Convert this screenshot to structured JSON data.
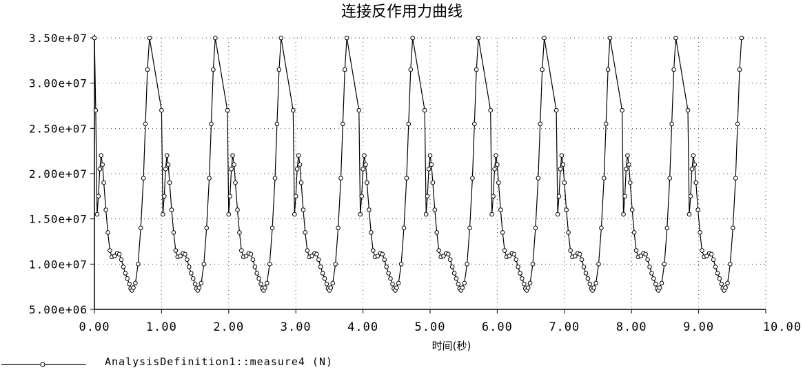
{
  "chart_data": {
    "type": "line",
    "title": "连接反作用力曲线",
    "xlabel": "时间(秒)",
    "ylabel": "",
    "xlim": [
      0,
      10
    ],
    "ylim": [
      5000000,
      35000000
    ],
    "x_tick_labels": [
      "0.00",
      "1.00",
      "2.00",
      "3.00",
      "4.00",
      "5.00",
      "6.00",
      "7.00",
      "8.00",
      "9.00",
      "10.00"
    ],
    "y_tick_labels": [
      "5.00e+06",
      "1.00e+07",
      "1.50e+07",
      "2.00e+07",
      "2.50e+07",
      "3.00e+07",
      "3.50e+07"
    ],
    "grid": true,
    "legend": "bottom-left",
    "series": [
      {
        "name": "AnalysisDefinition1::measure4 (N)",
        "color": "#000000",
        "marker": "circle",
        "period": 0.98,
        "cycles": 10,
        "cycle_shape": [
          [
            0.0,
            35000000
          ],
          [
            0.02,
            27000000
          ],
          [
            0.04,
            15500000
          ],
          [
            0.06,
            17500000
          ],
          [
            0.08,
            20500000
          ],
          [
            0.1,
            22000000
          ],
          [
            0.12,
            21000000
          ],
          [
            0.14,
            19000000
          ],
          [
            0.17,
            16000000
          ],
          [
            0.2,
            13500000
          ],
          [
            0.23,
            11500000
          ],
          [
            0.26,
            10800000
          ],
          [
            0.3,
            10900000
          ],
          [
            0.34,
            11200000
          ],
          [
            0.37,
            11100000
          ],
          [
            0.4,
            10500000
          ],
          [
            0.43,
            9700000
          ],
          [
            0.46,
            9000000
          ],
          [
            0.49,
            8400000
          ],
          [
            0.52,
            7800000
          ],
          [
            0.54,
            7300000
          ],
          [
            0.56,
            7100000
          ],
          [
            0.58,
            7400000
          ],
          [
            0.61,
            7900000
          ],
          [
            0.65,
            10000000
          ],
          [
            0.69,
            14000000
          ],
          [
            0.73,
            19500000
          ],
          [
            0.76,
            25500000
          ],
          [
            0.79,
            31500000
          ],
          [
            0.82,
            35000000
          ]
        ]
      }
    ]
  }
}
